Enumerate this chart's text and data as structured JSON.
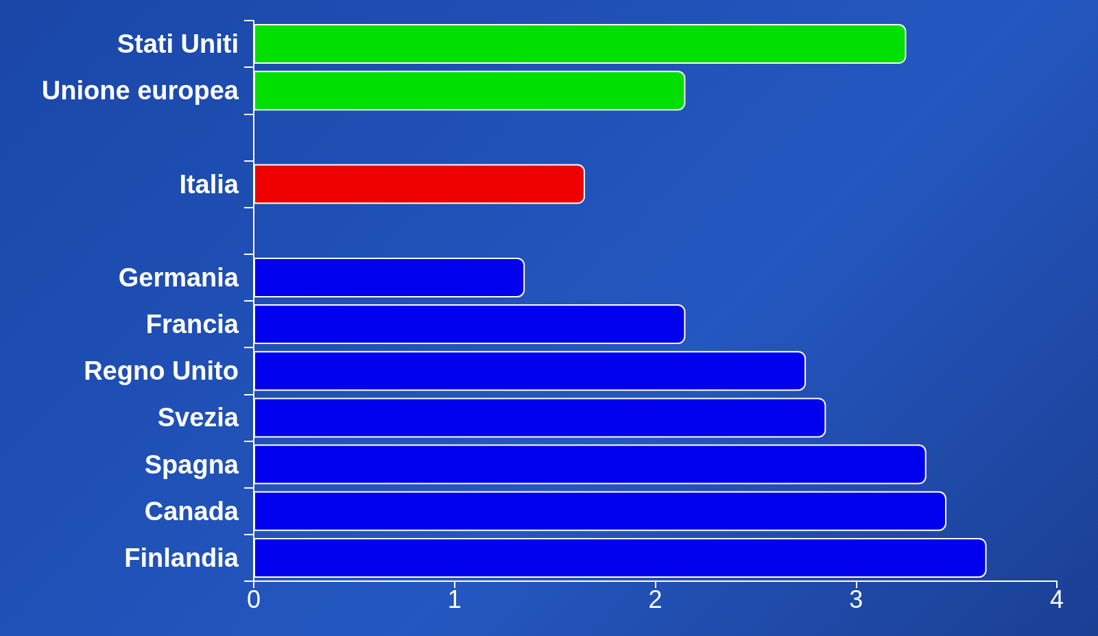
{
  "chart_data": {
    "type": "bar",
    "orientation": "horizontal",
    "categories": [
      "Stati Uniti",
      "Unione europea",
      null,
      "Italia",
      null,
      "Germania",
      "Francia",
      "Regno Unito",
      "Svezia",
      "Spagna",
      "Canada",
      "Finlandia"
    ],
    "values": [
      3.25,
      2.15,
      null,
      1.65,
      null,
      1.35,
      2.15,
      2.75,
      2.85,
      3.35,
      3.45,
      3.65
    ],
    "colors": [
      "#00e000",
      "#00e000",
      null,
      "#ee0000",
      null,
      "#0000ee",
      "#0000ee",
      "#0000ee",
      "#0000ee",
      "#0000ee",
      "#0000ee",
      "#0000ee"
    ],
    "xlim": [
      0,
      4
    ],
    "xticks": [
      0,
      1,
      2,
      3,
      4
    ],
    "grid": false
  }
}
